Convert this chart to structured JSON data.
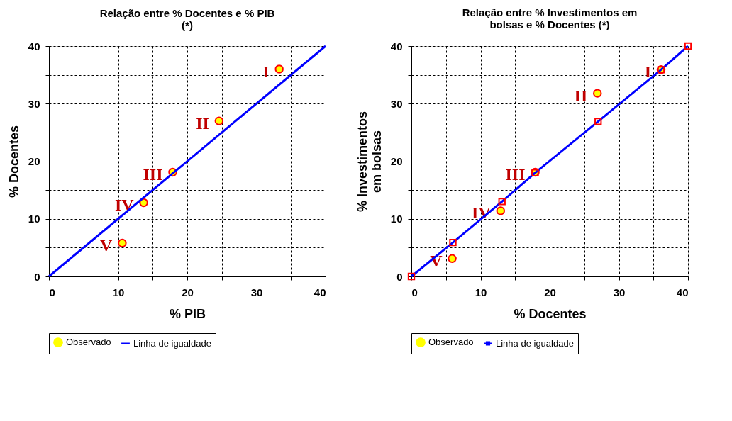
{
  "chart_data": [
    {
      "type": "scatter",
      "title": "Relação entre % Docentes e % PIB  (*)",
      "xlabel": "% PIB",
      "ylabel": "% Docentes",
      "xlim": [
        0,
        40
      ],
      "ylim": [
        0,
        40
      ],
      "xticks": [
        0,
        {
          "value": 5,
          "label": null
        },
        10,
        {
          "value": 15,
          "label": null
        },
        20,
        {
          "value": 25,
          "label": null
        },
        30,
        {
          "value": 35,
          "label": null
        },
        40
      ],
      "yticks": [
        0,
        {
          "value": 5,
          "label": null
        },
        10,
        {
          "value": 15,
          "label": null
        },
        20,
        {
          "value": 25,
          "label": null
        },
        30,
        {
          "value": 35,
          "label": null
        },
        40
      ],
      "grid": true,
      "legend": "bottom",
      "series": [
        {
          "name": "Observado",
          "marker": "circle",
          "color": "#ffff00",
          "x": [
            33.3,
            24.6,
            17.9,
            13.7,
            10.6
          ],
          "values": [
            36.0,
            27.0,
            18.1,
            12.8,
            5.8
          ],
          "value_labels": [
            "I",
            "II",
            "III",
            "IV",
            "V"
          ]
        },
        {
          "name": "Linha de igualdade",
          "type": "line",
          "marker": "none",
          "color": "#0000ff",
          "x": [
            0,
            40
          ],
          "values": [
            0,
            40
          ]
        }
      ]
    },
    {
      "type": "scatter",
      "title": "Relação entre % Investimentos em bolsas e % Docentes  (*)",
      "xlabel": "% Docentes",
      "ylabel": "% Investimentos em bolsas",
      "xlim": [
        0,
        40
      ],
      "ylim": [
        0,
        40
      ],
      "xticks": [
        0,
        {
          "value": 5,
          "label": null
        },
        10,
        {
          "value": 15,
          "label": null
        },
        20,
        {
          "value": 25,
          "label": null
        },
        30,
        {
          "value": 35,
          "label": null
        },
        40
      ],
      "yticks": [
        0,
        {
          "value": 5,
          "label": null
        },
        10,
        {
          "value": 15,
          "label": null
        },
        20,
        {
          "value": 25,
          "label": null
        },
        30,
        {
          "value": 35,
          "label": null
        },
        40
      ],
      "grid": true,
      "legend": "bottom",
      "series": [
        {
          "name": "Observado",
          "marker": "circle",
          "color": "#ffff00",
          "x": [
            36.1,
            26.9,
            17.9,
            12.9,
            5.9
          ],
          "values": [
            35.9,
            31.8,
            18.1,
            11.4,
            3.1
          ],
          "value_labels": [
            "I",
            "II",
            "III",
            "IV",
            "V"
          ]
        },
        {
          "name": "Linha de igualdade",
          "type": "line",
          "marker": "square",
          "color": "#0000ff",
          "x": [
            0,
            6.0,
            13.1,
            17.9,
            27.0,
            36.1,
            40
          ],
          "values": [
            0,
            5.9,
            13.0,
            18.0,
            26.9,
            35.9,
            40
          ]
        }
      ]
    }
  ]
}
